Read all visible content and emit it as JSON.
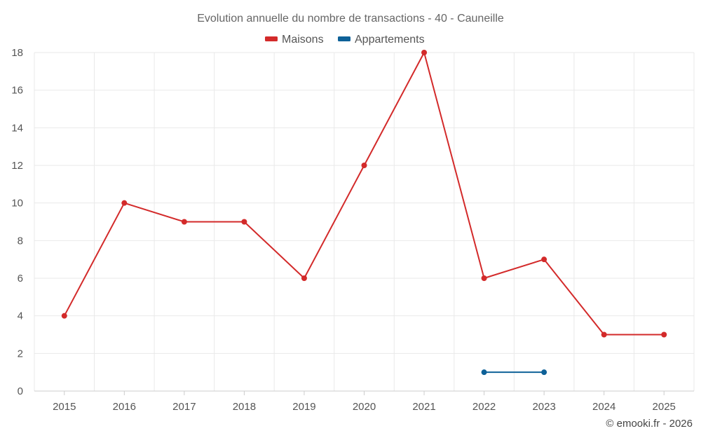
{
  "chart_data": {
    "type": "line",
    "title": "Evolution annuelle du nombre de transactions - 40 - Cauneille",
    "categories": [
      "2015",
      "2016",
      "2017",
      "2018",
      "2019",
      "2020",
      "2021",
      "2022",
      "2023",
      "2024",
      "2025"
    ],
    "series": [
      {
        "name": "Maisons",
        "color": "#d32a2a",
        "values": [
          4,
          10,
          9,
          9,
          6,
          12,
          18,
          6,
          7,
          3,
          3
        ]
      },
      {
        "name": "Appartements",
        "color": "#0e6198",
        "values": [
          null,
          null,
          null,
          null,
          null,
          null,
          null,
          1,
          1,
          null,
          null
        ]
      }
    ],
    "ylim": [
      0,
      18
    ],
    "yticks": [
      0,
      2,
      4,
      6,
      8,
      10,
      12,
      14,
      16,
      18
    ],
    "xlabel": "",
    "ylabel": "",
    "grid": true,
    "legend_position": "top-center"
  },
  "credit": "© emooki.fr - 2026"
}
